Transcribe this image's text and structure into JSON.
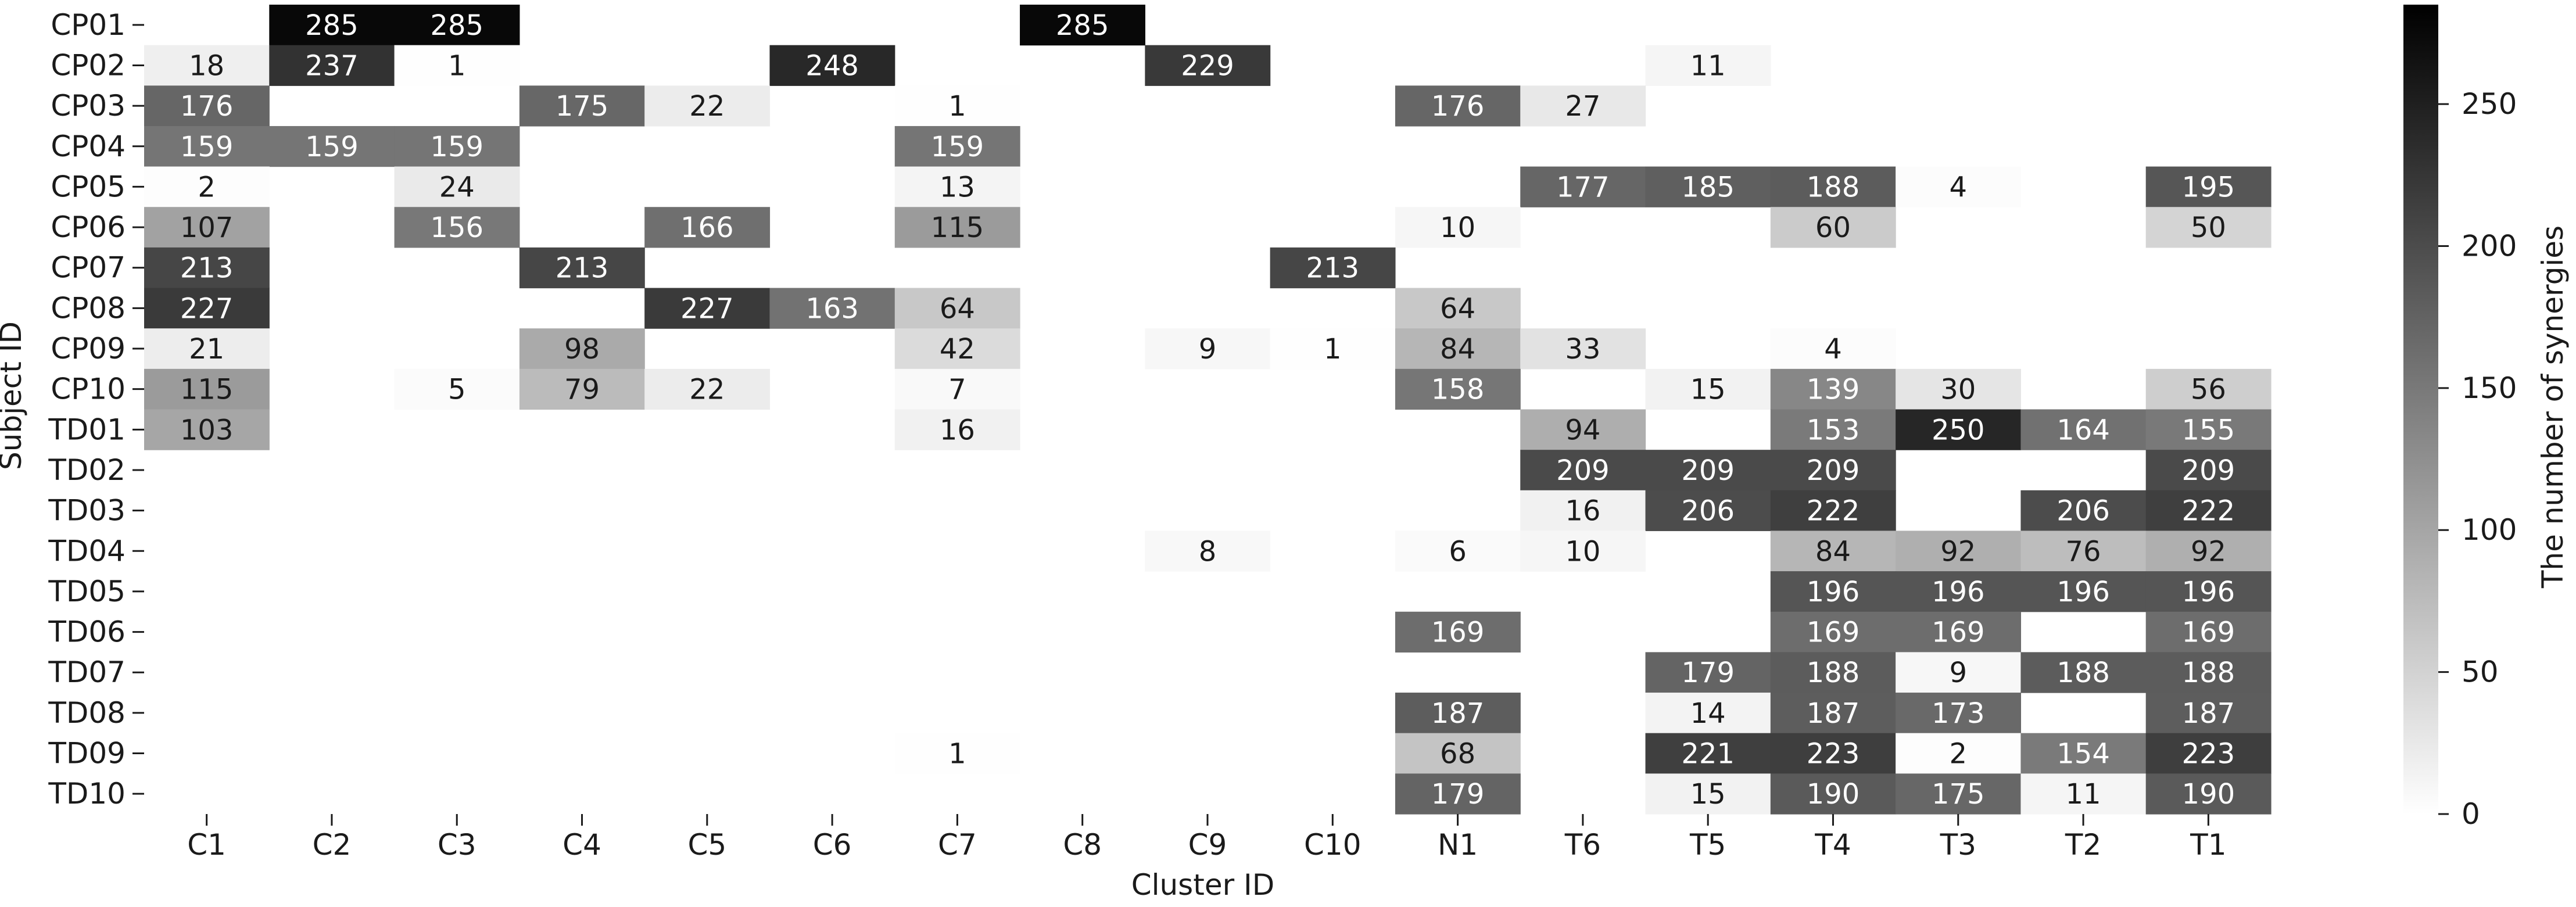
{
  "chart_data": {
    "type": "heatmap",
    "xlabel": "Cluster ID",
    "ylabel": "Subject ID",
    "colorbar_label": "The number of synergies",
    "x_categories": [
      "C1",
      "C2",
      "C3",
      "C4",
      "C5",
      "C6",
      "C7",
      "C8",
      "C9",
      "C10",
      "N1",
      "T6",
      "T5",
      "T4",
      "T3",
      "T2",
      "T1"
    ],
    "y_categories": [
      "CP01",
      "CP02",
      "CP03",
      "CP04",
      "CP05",
      "CP06",
      "CP07",
      "CP08",
      "CP09",
      "CP10",
      "TD01",
      "TD02",
      "TD03",
      "TD04",
      "TD05",
      "TD06",
      "TD07",
      "TD08",
      "TD09",
      "TD10"
    ],
    "colorbar_range": [
      0,
      285
    ],
    "colorbar_ticks": [
      0,
      50,
      100,
      150,
      200,
      250
    ],
    "colormap": "white-to-black",
    "values": [
      [
        null,
        285,
        285,
        null,
        null,
        null,
        null,
        285,
        null,
        null,
        null,
        null,
        null,
        null,
        null,
        null,
        null
      ],
      [
        18,
        237,
        1,
        null,
        null,
        248,
        null,
        null,
        229,
        null,
        null,
        null,
        11,
        null,
        null,
        null,
        null
      ],
      [
        176,
        null,
        null,
        175,
        22,
        null,
        1,
        null,
        null,
        null,
        176,
        27,
        null,
        null,
        null,
        null,
        null
      ],
      [
        159,
        159,
        159,
        null,
        null,
        null,
        159,
        null,
        null,
        null,
        null,
        null,
        null,
        null,
        null,
        null,
        null
      ],
      [
        2,
        null,
        24,
        null,
        null,
        null,
        13,
        null,
        null,
        null,
        null,
        177,
        185,
        188,
        4,
        null,
        195
      ],
      [
        107,
        null,
        156,
        null,
        166,
        null,
        115,
        null,
        null,
        null,
        10,
        null,
        null,
        60,
        null,
        null,
        50
      ],
      [
        213,
        null,
        null,
        213,
        null,
        null,
        null,
        null,
        null,
        213,
        null,
        null,
        null,
        null,
        null,
        null,
        null
      ],
      [
        227,
        null,
        null,
        null,
        227,
        163,
        64,
        null,
        null,
        null,
        64,
        null,
        null,
        null,
        null,
        null,
        null
      ],
      [
        21,
        null,
        null,
        98,
        null,
        null,
        42,
        null,
        9,
        1,
        84,
        33,
        null,
        4,
        null,
        null,
        null
      ],
      [
        115,
        null,
        5,
        79,
        22,
        null,
        7,
        null,
        null,
        null,
        158,
        null,
        15,
        139,
        30,
        null,
        56
      ],
      [
        103,
        null,
        null,
        null,
        null,
        null,
        16,
        null,
        null,
        null,
        null,
        94,
        null,
        153,
        250,
        164,
        155
      ],
      [
        null,
        null,
        null,
        null,
        null,
        null,
        null,
        null,
        null,
        null,
        null,
        209,
        209,
        209,
        null,
        null,
        209
      ],
      [
        null,
        null,
        null,
        null,
        null,
        null,
        null,
        null,
        null,
        null,
        null,
        16,
        206,
        222,
        null,
        206,
        222
      ],
      [
        null,
        null,
        null,
        null,
        null,
        null,
        null,
        null,
        8,
        null,
        6,
        10,
        null,
        84,
        92,
        76,
        92
      ],
      [
        null,
        null,
        null,
        null,
        null,
        null,
        null,
        null,
        null,
        null,
        null,
        null,
        null,
        196,
        196,
        196,
        196
      ],
      [
        null,
        null,
        null,
        null,
        null,
        null,
        null,
        null,
        null,
        null,
        169,
        null,
        null,
        169,
        169,
        null,
        169
      ],
      [
        null,
        null,
        null,
        null,
        null,
        null,
        null,
        null,
        null,
        null,
        null,
        null,
        179,
        188,
        9,
        188,
        188
      ],
      [
        null,
        null,
        null,
        null,
        null,
        null,
        null,
        null,
        null,
        null,
        187,
        null,
        14,
        187,
        173,
        null,
        187
      ],
      [
        null,
        null,
        null,
        null,
        null,
        null,
        1,
        null,
        null,
        null,
        68,
        null,
        221,
        223,
        2,
        154,
        223
      ],
      [
        null,
        null,
        null,
        null,
        null,
        null,
        null,
        null,
        null,
        null,
        179,
        null,
        15,
        190,
        175,
        11,
        190
      ]
    ]
  }
}
